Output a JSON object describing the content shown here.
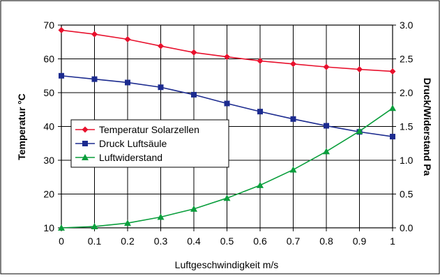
{
  "chart_data": {
    "type": "line",
    "title": "",
    "xlabel": "Luftgeschwindigkeit m/s",
    "ylabel_left": "Temperatur °C",
    "ylabel_right": "Druck/Widerstand Pa",
    "x": [
      0,
      0.1,
      0.2,
      0.3,
      0.4,
      0.5,
      0.6,
      0.7,
      0.8,
      0.9,
      1
    ],
    "x_tick_labels": [
      "0",
      "0.1",
      "0.2",
      "0.3",
      "0.4",
      "0.5",
      "0.6",
      "0.7",
      "0.8",
      "0.9",
      "1"
    ],
    "ylim_left": [
      10,
      70
    ],
    "y_left_ticks": [
      "10",
      "20",
      "30",
      "40",
      "50",
      "60",
      "70"
    ],
    "ylim_right": [
      0,
      3
    ],
    "y_right_ticks": [
      "0.0",
      "0.5",
      "1.0",
      "1.5",
      "2.0",
      "2.5",
      "3.0"
    ],
    "grid": true,
    "legend_position": "middle-left",
    "series": [
      {
        "name": "Temperatur Solarzellen",
        "axis": "left",
        "color": "#e8112d",
        "marker": "diamond",
        "values": [
          68.5,
          67.3,
          65.8,
          63.8,
          61.9,
          60.6,
          59.4,
          58.5,
          57.6,
          56.9,
          56.3
        ]
      },
      {
        "name": "Druck Luftsäule",
        "axis": "right",
        "color": "#1c2b8f",
        "marker": "square",
        "values": [
          2.25,
          2.2,
          2.15,
          2.08,
          1.97,
          1.84,
          1.72,
          1.61,
          1.51,
          1.42,
          1.35
        ]
      },
      {
        "name": "Luftwiderstand",
        "axis": "right",
        "color": "#0a9e3c",
        "marker": "triangle",
        "values": [
          0.0,
          0.02,
          0.07,
          0.16,
          0.28,
          0.44,
          0.63,
          0.86,
          1.13,
          1.43,
          1.77
        ]
      }
    ]
  }
}
